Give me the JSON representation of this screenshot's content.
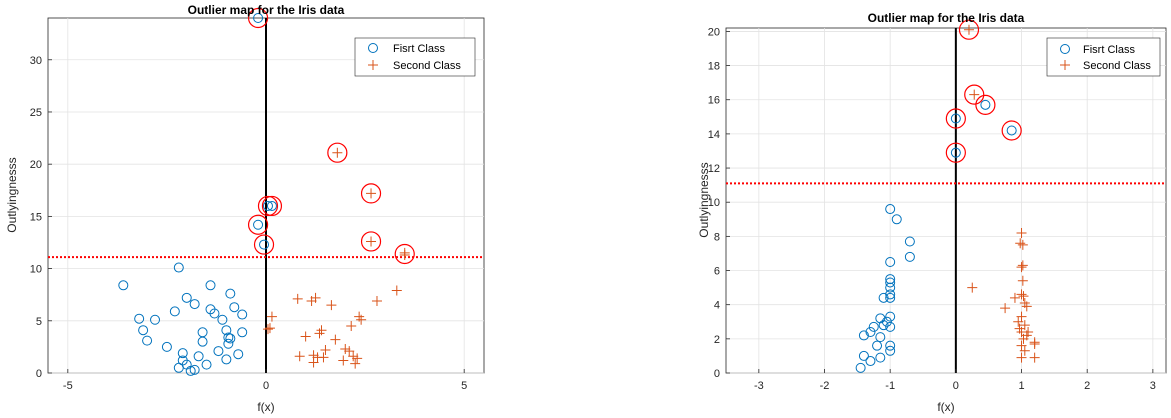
{
  "chart_data": [
    {
      "type": "scatter",
      "title": "Outlier map for the Iris data",
      "xlabel": "f(x)",
      "ylabel": "Outlyingnesss",
      "xlim": [
        -5.5,
        5.5
      ],
      "ylim": [
        0,
        34
      ],
      "xticks": [
        -5,
        0,
        5
      ],
      "yticks": [
        0,
        5,
        10,
        15,
        20,
        25,
        30
      ],
      "grid": true,
      "legend_position": "top-right",
      "threshold": 11.1,
      "vline": 0,
      "series": [
        {
          "name": "Fisrt Class",
          "marker": "circle",
          "color": "#0072BD",
          "points": [
            [
              -3.6,
              8.4
            ],
            [
              -3.2,
              5.2
            ],
            [
              -3.1,
              4.1
            ],
            [
              -3.0,
              3.1
            ],
            [
              -2.8,
              5.1
            ],
            [
              -2.5,
              2.5
            ],
            [
              -2.3,
              5.9
            ],
            [
              -2.2,
              10.1
            ],
            [
              -2.1,
              1.9
            ],
            [
              -2.2,
              0.5
            ],
            [
              -2.1,
              1.2
            ],
            [
              -2.0,
              0.8
            ],
            [
              -2.0,
              7.2
            ],
            [
              -1.9,
              0.2
            ],
            [
              -1.8,
              6.6
            ],
            [
              -1.8,
              0.3
            ],
            [
              -1.7,
              1.6
            ],
            [
              -1.6,
              3.9
            ],
            [
              -1.6,
              3.0
            ],
            [
              -1.5,
              0.8
            ],
            [
              -1.4,
              8.4
            ],
            [
              -1.4,
              6.1
            ],
            [
              -1.3,
              5.7
            ],
            [
              -1.2,
              2.1
            ],
            [
              -1.1,
              5.1
            ],
            [
              -1.0,
              1.3
            ],
            [
              -1.0,
              4.1
            ],
            [
              -0.95,
              3.4
            ],
            [
              -0.95,
              2.8
            ],
            [
              -0.9,
              3.3
            ],
            [
              -0.9,
              7.6
            ],
            [
              -0.8,
              6.3
            ],
            [
              -0.7,
              1.8
            ],
            [
              -0.6,
              5.6
            ],
            [
              -0.6,
              3.9
            ],
            [
              -0.2,
              34.0
            ],
            [
              -0.2,
              14.2
            ],
            [
              -0.05,
              12.3
            ],
            [
              0.05,
              16.0
            ],
            [
              0.15,
              16.0
            ]
          ]
        },
        {
          "name": "Second Class",
          "marker": "plus",
          "color": "#D95319",
          "points": [
            [
              0.05,
              4.2
            ],
            [
              0.1,
              4.3
            ],
            [
              0.15,
              5.4
            ],
            [
              0.8,
              7.1
            ],
            [
              0.85,
              1.6
            ],
            [
              1.0,
              3.5
            ],
            [
              1.15,
              6.9
            ],
            [
              1.2,
              1.7
            ],
            [
              1.2,
              1.0
            ],
            [
              1.25,
              7.2
            ],
            [
              1.3,
              1.5
            ],
            [
              1.35,
              3.8
            ],
            [
              1.4,
              4.1
            ],
            [
              1.45,
              1.5
            ],
            [
              1.5,
              2.2
            ],
            [
              1.65,
              6.5
            ],
            [
              1.75,
              3.2
            ],
            [
              1.95,
              1.2
            ],
            [
              2.0,
              2.3
            ],
            [
              2.1,
              2.1
            ],
            [
              2.15,
              4.5
            ],
            [
              2.2,
              1.6
            ],
            [
              2.25,
              0.9
            ],
            [
              2.3,
              1.4
            ],
            [
              2.35,
              5.4
            ],
            [
              2.4,
              5.1
            ],
            [
              2.8,
              6.9
            ],
            [
              3.3,
              7.9
            ],
            [
              1.8,
              21.1
            ],
            [
              2.65,
              17.2
            ],
            [
              2.65,
              12.6
            ],
            [
              3.5,
              11.5
            ],
            [
              3.5,
              11.3
            ]
          ]
        }
      ],
      "flagged_outliers": [
        [
          -0.2,
          34.0
        ],
        [
          -0.2,
          14.2
        ],
        [
          -0.05,
          12.3
        ],
        [
          0.05,
          16.0
        ],
        [
          0.15,
          16.0
        ],
        [
          1.8,
          21.1
        ],
        [
          2.65,
          17.2
        ],
        [
          2.65,
          12.6
        ],
        [
          3.5,
          11.4
        ]
      ]
    },
    {
      "type": "scatter",
      "title": "Outlier map for the Iris data",
      "xlabel": "f(x)",
      "ylabel": "Outlyingnesss",
      "xlim": [
        -3.5,
        3.2
      ],
      "ylim": [
        0,
        20.2
      ],
      "xticks": [
        -3,
        -2,
        -1,
        0,
        1,
        2,
        3
      ],
      "yticks": [
        0,
        2,
        4,
        6,
        8,
        10,
        12,
        14,
        16,
        18,
        20
      ],
      "grid": true,
      "legend_position": "top-right",
      "threshold": 11.1,
      "vline": 0,
      "series": [
        {
          "name": "Fisrt Class",
          "marker": "circle",
          "color": "#0072BD",
          "points": [
            [
              -1.45,
              0.3
            ],
            [
              -1.4,
              1.0
            ],
            [
              -1.4,
              2.2
            ],
            [
              -1.3,
              2.4
            ],
            [
              -1.3,
              0.7
            ],
            [
              -1.25,
              2.7
            ],
            [
              -1.2,
              1.6
            ],
            [
              -1.15,
              0.9
            ],
            [
              -1.15,
              2.1
            ],
            [
              -1.15,
              3.2
            ],
            [
              -1.1,
              2.8
            ],
            [
              -1.1,
              4.4
            ],
            [
              -1.05,
              3.0
            ],
            [
              -1.0,
              1.6
            ],
            [
              -1.0,
              2.7
            ],
            [
              -1.0,
              3.3
            ],
            [
              -1.0,
              4.4
            ],
            [
              -1.0,
              4.6
            ],
            [
              -1.0,
              5.0
            ],
            [
              -1.0,
              5.3
            ],
            [
              -1.0,
              5.5
            ],
            [
              -1.0,
              6.5
            ],
            [
              -1.0,
              9.6
            ],
            [
              -1.0,
              1.3
            ],
            [
              -0.9,
              9.0
            ],
            [
              -0.7,
              7.7
            ],
            [
              -0.7,
              6.8
            ],
            [
              0.0,
              14.9
            ],
            [
              0.0,
              12.9
            ],
            [
              0.45,
              15.7
            ],
            [
              0.85,
              14.2
            ]
          ]
        },
        {
          "name": "Second Class",
          "marker": "plus",
          "color": "#D95319",
          "points": [
            [
              0.2,
              20.1
            ],
            [
              0.28,
              16.3
            ],
            [
              0.25,
              5.0
            ],
            [
              0.75,
              3.8
            ],
            [
              0.9,
              4.4
            ],
            [
              0.95,
              3.0
            ],
            [
              0.97,
              2.6
            ],
            [
              0.98,
              7.6
            ],
            [
              1.0,
              8.2
            ],
            [
              1.0,
              6.2
            ],
            [
              1.0,
              4.6
            ],
            [
              1.0,
              3.3
            ],
            [
              1.0,
              2.4
            ],
            [
              1.0,
              1.6
            ],
            [
              1.0,
              0.9
            ],
            [
              1.02,
              7.5
            ],
            [
              1.02,
              6.3
            ],
            [
              1.02,
              5.4
            ],
            [
              1.03,
              4.5
            ],
            [
              1.03,
              2.0
            ],
            [
              1.05,
              4.1
            ],
            [
              1.05,
              2.8
            ],
            [
              1.05,
              1.3
            ],
            [
              1.08,
              2.2
            ],
            [
              1.08,
              3.9
            ],
            [
              1.2,
              1.8
            ],
            [
              1.2,
              1.7
            ],
            [
              1.2,
              0.9
            ],
            [
              1.1,
              2.4
            ]
          ]
        }
      ],
      "flagged_outliers": [
        [
          0.2,
          20.1
        ],
        [
          0.28,
          16.3
        ],
        [
          0.0,
          14.9
        ],
        [
          0.0,
          12.9
        ],
        [
          0.45,
          15.7
        ],
        [
          0.85,
          14.2
        ]
      ]
    }
  ]
}
